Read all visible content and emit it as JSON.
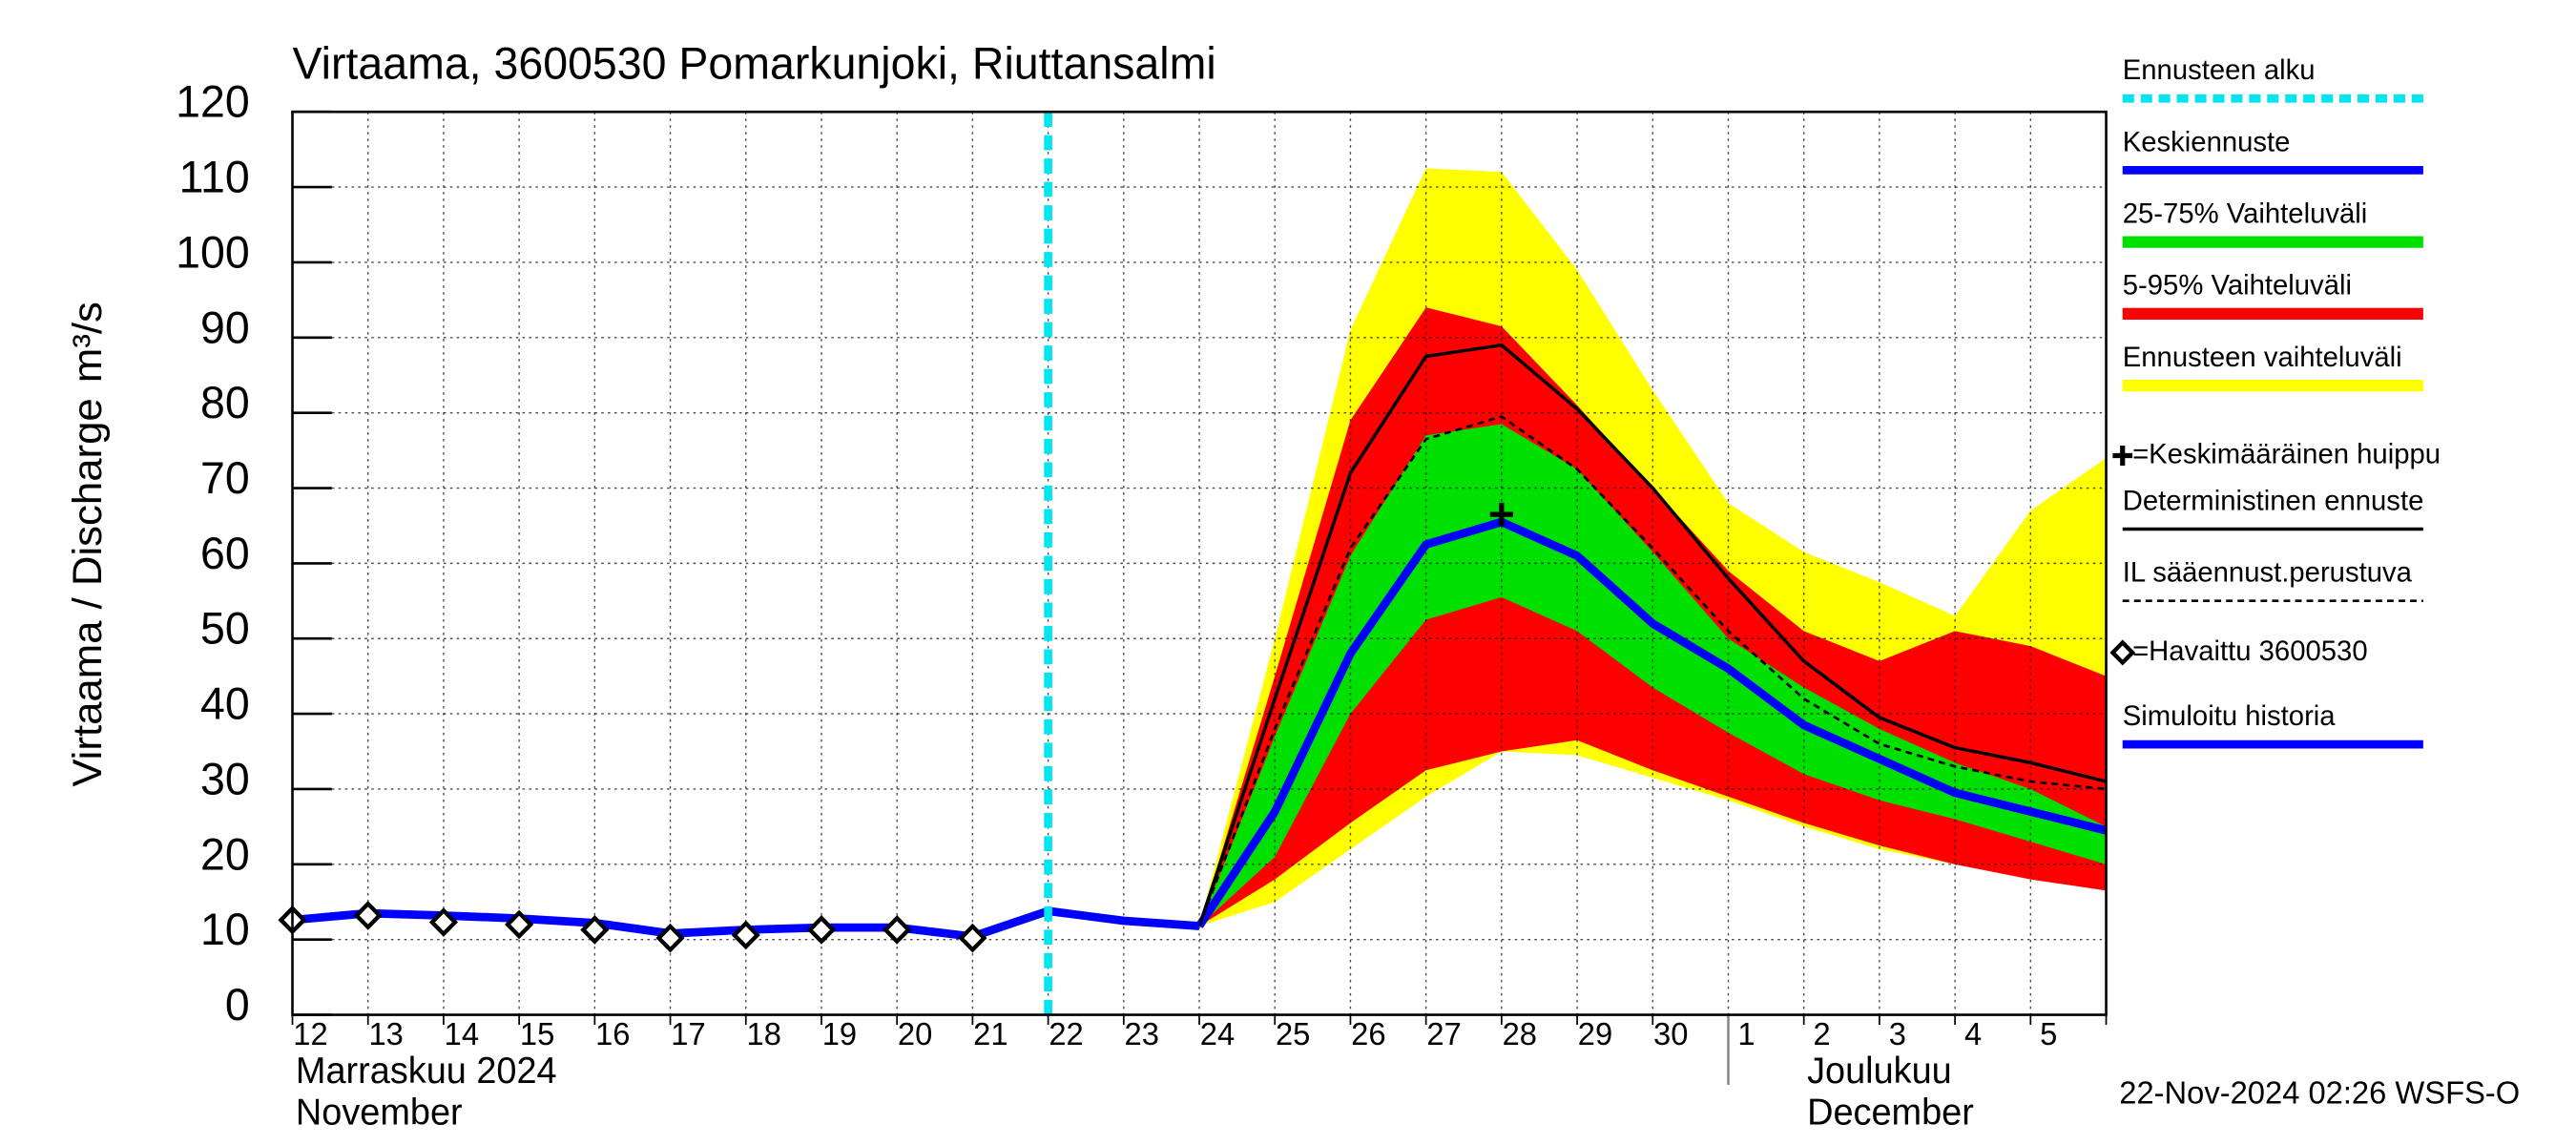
{
  "chart_data": {
    "type": "line",
    "title": "Virtaama, 3600530 Pomarkunjoki, Riuttansalmi",
    "y_label": "Virtaama / Discharge",
    "y_unit": "m³/s",
    "categories": [
      "12",
      "13",
      "14",
      "15",
      "16",
      "17",
      "18",
      "19",
      "20",
      "21",
      "22",
      "23",
      "24",
      "25",
      "26",
      "27",
      "28",
      "29",
      "30",
      "1",
      "2",
      "3",
      "4",
      "5",
      null
    ],
    "month_labels": [
      {
        "at": 0,
        "text": [
          "Marraskuu 2024",
          "November"
        ]
      },
      {
        "at": 19,
        "text": [
          "Joulukuu",
          "December"
        ]
      }
    ],
    "timestamp": "22-Nov-2024 02:26 WSFS-O",
    "ylim": [
      0,
      120
    ],
    "yticks": [
      0,
      10,
      20,
      30,
      40,
      50,
      60,
      70,
      80,
      90,
      100,
      110,
      120
    ],
    "grid": true,
    "forecast_start": {
      "name": "Ennusteen alku",
      "color": "#00e5ee",
      "at": 10
    },
    "bands": [
      {
        "name": "Ennusteen vaihteluväli",
        "color": "#ffff00",
        "upper": [
          null,
          null,
          null,
          null,
          null,
          null,
          null,
          null,
          null,
          null,
          null,
          null,
          11.8,
          50,
          91,
          112.5,
          112,
          99,
          83,
          68,
          61.5,
          57.5,
          53,
          67,
          74
        ],
        "lower": [
          null,
          null,
          null,
          null,
          null,
          null,
          null,
          null,
          null,
          null,
          null,
          null,
          11.8,
          15,
          22,
          29,
          35,
          34.5,
          31.5,
          28.5,
          25,
          22,
          20,
          18.5,
          16.5
        ]
      },
      {
        "name": "5-95% Vaihteluväli",
        "color": "#ff0000",
        "upper": [
          null,
          null,
          null,
          null,
          null,
          null,
          null,
          null,
          null,
          null,
          null,
          null,
          11.8,
          45,
          79,
          94,
          91.5,
          81,
          70,
          59,
          51,
          47,
          51,
          49,
          45
        ],
        "lower": [
          null,
          null,
          null,
          null,
          null,
          null,
          null,
          null,
          null,
          null,
          null,
          null,
          11.8,
          18,
          25.5,
          32.5,
          35,
          36.5,
          32.5,
          29,
          25.5,
          22.5,
          20,
          18,
          16.5
        ]
      },
      {
        "name": "25-75% Vaihteluväli",
        "color": "#00e000",
        "upper": [
          null,
          null,
          null,
          null,
          null,
          null,
          null,
          null,
          null,
          null,
          null,
          null,
          11.8,
          37,
          61,
          77,
          78.5,
          72.5,
          61.5,
          50,
          43.5,
          38,
          33.5,
          30,
          25
        ],
        "lower": [
          null,
          null,
          null,
          null,
          null,
          null,
          null,
          null,
          null,
          null,
          null,
          null,
          11.8,
          21,
          40,
          52.5,
          55.5,
          51,
          43.5,
          37.5,
          32,
          28.5,
          26,
          23,
          20
        ]
      }
    ],
    "series": [
      {
        "name": "Keskiennuste",
        "color": "#0000ff",
        "style": "thick",
        "values": [
          null,
          null,
          null,
          null,
          null,
          null,
          null,
          null,
          null,
          null,
          null,
          null,
          11.8,
          27,
          48,
          62.5,
          65.5,
          61,
          52,
          46,
          38.5,
          34,
          29.5,
          27,
          24.5
        ]
      },
      {
        "name": "Deterministinen ennuste",
        "color": "#000000",
        "style": "solid",
        "values": [
          null,
          null,
          null,
          null,
          null,
          null,
          null,
          null,
          null,
          null,
          null,
          null,
          11.8,
          42,
          72,
          87.5,
          89,
          80.5,
          70,
          58,
          47,
          39.5,
          35.5,
          33.5,
          31
        ]
      },
      {
        "name": "IL sääennust.perustuva",
        "color": "#000000",
        "style": "dashed",
        "values": [
          null,
          null,
          null,
          null,
          null,
          null,
          null,
          null,
          null,
          null,
          null,
          null,
          11.8,
          38,
          62,
          76.5,
          79.5,
          72.5,
          62,
          51,
          42,
          36,
          33,
          31,
          30
        ]
      },
      {
        "name": "Simuloitu historia",
        "color": "#0000ff",
        "style": "thick",
        "values": [
          12.6,
          13.5,
          13.2,
          12.8,
          12.2,
          10.8,
          11.3,
          11.6,
          11.6,
          10.4,
          13.8,
          12.5,
          11.8,
          null,
          null,
          null,
          null,
          null,
          null,
          null,
          null,
          null,
          null,
          null,
          null
        ]
      },
      {
        "name": "=Havaittu 3600530",
        "color": "#000000",
        "style": "diamond",
        "values": [
          12.6,
          13.2,
          12.3,
          12.0,
          11.3,
          10.2,
          10.6,
          11.3,
          11.3,
          10.2,
          null,
          null,
          null,
          null,
          null,
          null,
          null,
          null,
          null,
          null,
          null,
          null,
          null,
          null,
          null
        ]
      }
    ],
    "peak": {
      "name": "=Keskimääräinen huippu",
      "at": 16,
      "value": 66.5
    }
  }
}
